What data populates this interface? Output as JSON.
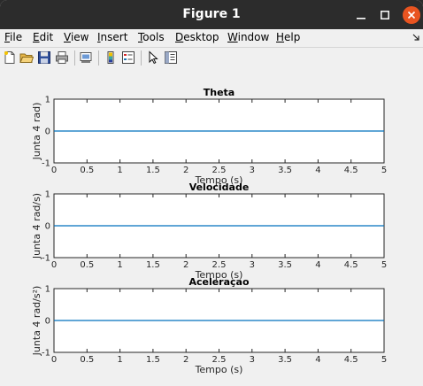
{
  "window": {
    "title": "Figure 1"
  },
  "menu": {
    "items": [
      {
        "label": "File",
        "key": "F",
        "rest": "ile",
        "name": "menu-file"
      },
      {
        "label": "Edit",
        "key": "E",
        "rest": "dit",
        "name": "menu-edit"
      },
      {
        "label": "View",
        "key": "V",
        "rest": "iew",
        "name": "menu-view"
      },
      {
        "label": "Insert",
        "key": "I",
        "rest": "nsert",
        "name": "menu-insert"
      },
      {
        "label": "Tools",
        "key": "T",
        "rest": "ools",
        "name": "menu-tools"
      },
      {
        "label": "Desktop",
        "key": "D",
        "rest": "esktop",
        "name": "menu-desktop"
      },
      {
        "label": "Window",
        "key": "W",
        "rest": "indow",
        "name": "menu-window"
      },
      {
        "label": "Help",
        "key": "H",
        "rest": "elp",
        "name": "menu-help"
      }
    ],
    "dock_icon": "dock-arrow-icon"
  },
  "toolbar": {
    "icons": [
      "new-figure-icon",
      "open-file-icon",
      "save-icon",
      "print-icon",
      "link-plot-icon",
      "colorbar-icon",
      "legend-icon",
      "edit-plot-pointer-icon",
      "property-inspector-icon"
    ]
  },
  "colors": {
    "line": "#0072bd",
    "axes": "#262626",
    "titlebar": "#2c2c2c",
    "close": "#e95420"
  },
  "chart_data": [
    {
      "type": "line",
      "title": "Theta",
      "xlabel": "Tempo (s)",
      "ylabel": "Junta 4 rad)",
      "xlim": [
        0,
        5
      ],
      "ylim": [
        -1,
        1
      ],
      "xticks": [
        "0",
        "0.5",
        "1",
        "1.5",
        "2",
        "2.5",
        "3",
        "3.5",
        "4",
        "4.5",
        "5"
      ],
      "yticks": [
        "-1",
        "0",
        "1"
      ],
      "series": [
        {
          "x": [
            0,
            5
          ],
          "y": [
            0,
            0
          ]
        }
      ]
    },
    {
      "type": "line",
      "title": "Velocidade",
      "xlabel": "Tempo (s)",
      "ylabel": "Junta 4 rad/s)",
      "xlim": [
        0,
        5
      ],
      "ylim": [
        -1,
        1
      ],
      "xticks": [
        "0",
        "0.5",
        "1",
        "1.5",
        "2",
        "2.5",
        "3",
        "3.5",
        "4",
        "4.5",
        "5"
      ],
      "yticks": [
        "-1",
        "0",
        "1"
      ],
      "series": [
        {
          "x": [
            0,
            5
          ],
          "y": [
            0,
            0
          ]
        }
      ]
    },
    {
      "type": "line",
      "title": "Aceleraçao",
      "xlabel": "Tempo (s)",
      "ylabel": "Junta 4 rad/s²)",
      "xlim": [
        0,
        5
      ],
      "ylim": [
        -1,
        1
      ],
      "xticks": [
        "0",
        "0.5",
        "1",
        "1.5",
        "2",
        "2.5",
        "3",
        "3.5",
        "4",
        "4.5",
        "5"
      ],
      "yticks": [
        "-1",
        "0",
        "1"
      ],
      "series": [
        {
          "x": [
            0,
            5
          ],
          "y": [
            0,
            0
          ]
        }
      ]
    }
  ]
}
